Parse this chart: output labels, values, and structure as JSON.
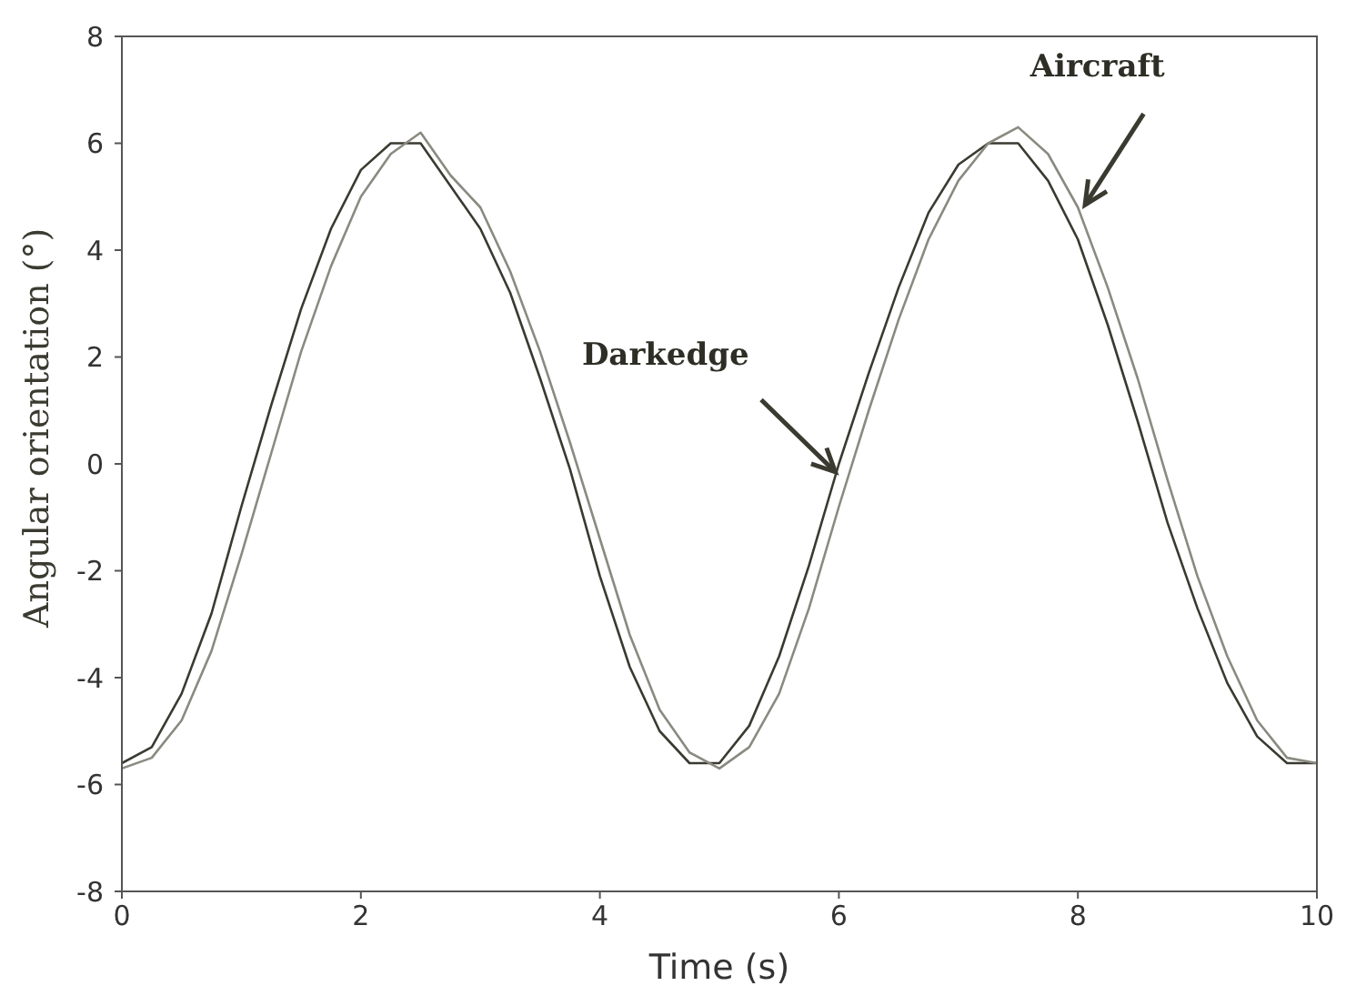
{
  "chart_data": {
    "type": "line",
    "xlabel": "Time (s)",
    "ylabel": "Angular orientation (°)",
    "x": [
      0,
      0.25,
      0.5,
      0.75,
      1,
      1.25,
      1.5,
      1.75,
      2,
      2.25,
      2.5,
      2.75,
      3,
      3.25,
      3.5,
      3.75,
      4,
      4.25,
      4.5,
      4.75,
      5,
      5.25,
      5.5,
      5.75,
      6,
      6.25,
      6.5,
      6.75,
      7,
      7.25,
      7.5,
      7.75,
      8,
      8.25,
      8.5,
      8.75,
      9,
      9.25,
      9.5,
      9.75,
      10
    ],
    "series": [
      {
        "name": "Darkedge",
        "color": "#3a3a30",
        "values": [
          -5.6,
          -5.3,
          -4.3,
          -2.8,
          -0.8,
          1.1,
          2.9,
          4.4,
          5.5,
          6.0,
          6.0,
          5.2,
          4.4,
          3.2,
          1.6,
          -0.1,
          -2.1,
          -3.8,
          -5.0,
          -5.6,
          -5.6,
          -4.9,
          -3.6,
          -1.9,
          0,
          1.7,
          3.3,
          4.7,
          5.6,
          6.0,
          6.0,
          5.3,
          4.2,
          2.6,
          0.8,
          -1.1,
          -2.7,
          -4.1,
          -5.1,
          -5.6,
          -5.6
        ]
      },
      {
        "name": "Aircraft",
        "color": "#8a8a80",
        "values": [
          -5.7,
          -5.5,
          -4.8,
          -3.5,
          -1.7,
          0.2,
          2.1,
          3.7,
          5.0,
          5.8,
          6.2,
          5.4,
          4.8,
          3.6,
          2.1,
          0.4,
          -1.4,
          -3.2,
          -4.6,
          -5.4,
          -5.7,
          -5.3,
          -4.3,
          -2.7,
          -0.8,
          1.0,
          2.7,
          4.2,
          5.3,
          6.0,
          6.3,
          5.8,
          4.8,
          3.3,
          1.6,
          -0.3,
          -2.1,
          -3.6,
          -4.8,
          -5.5,
          -5.6
        ]
      }
    ],
    "xlim": [
      0,
      10
    ],
    "xticks": [
      0,
      2,
      4,
      6,
      8,
      10
    ],
    "ylim": [
      -8,
      8
    ],
    "yticks": [
      -8,
      -6,
      -4,
      -2,
      0,
      2,
      4,
      6,
      8
    ],
    "grid": false,
    "legend": false,
    "marker": "none",
    "line_style": "solid"
  }
}
